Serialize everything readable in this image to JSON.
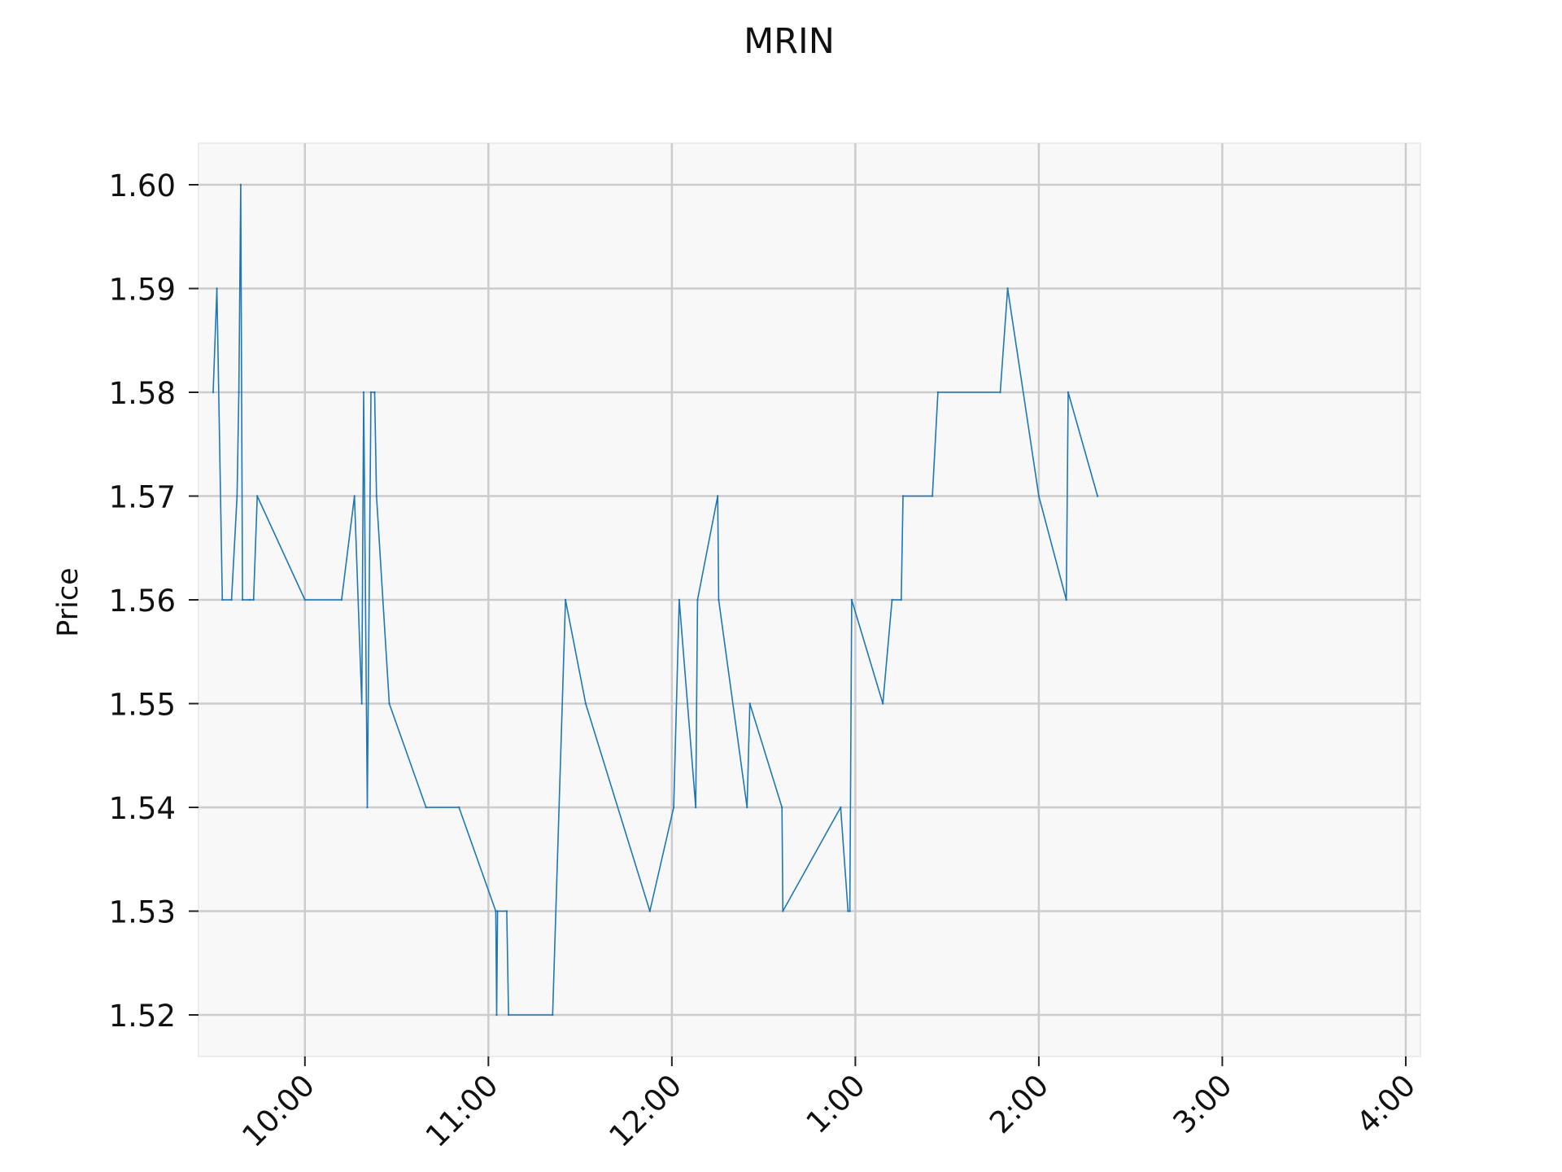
{
  "chart_data": {
    "type": "line",
    "title": "MRIN",
    "xlabel": "",
    "ylabel": "Price",
    "x_tick_labels": [
      "10:00",
      "11:00",
      "12:00",
      "1:00",
      "2:00",
      "3:00",
      "4:00"
    ],
    "x_tick_hours": [
      10,
      11,
      12,
      13,
      14,
      15,
      16
    ],
    "xlim_hours": [
      9.42,
      16.08
    ],
    "y_tick_labels": [
      "1.52",
      "1.53",
      "1.54",
      "1.55",
      "1.56",
      "1.57",
      "1.58",
      "1.59",
      "1.60"
    ],
    "ylim": [
      1.516,
      1.604
    ],
    "grid": true,
    "colors": {
      "line": "#1f77b4",
      "plot_bg": "#f8f8f8",
      "grid": "#cccccc"
    },
    "series": [
      {
        "x_hours": [
          9.5,
          9.52,
          9.55,
          9.6,
          9.63,
          9.64,
          9.65,
          9.66,
          9.7,
          9.72,
          9.74,
          10.0,
          10.2,
          10.27,
          10.31,
          10.32,
          10.34,
          10.36,
          10.38,
          10.39,
          10.46,
          10.66,
          10.84,
          11.04,
          11.045,
          11.05,
          11.1,
          11.11,
          11.35,
          11.42,
          11.53,
          11.88,
          12.01,
          12.04,
          12.13,
          12.14,
          12.25,
          12.255,
          12.41,
          12.425,
          12.6,
          12.605,
          12.92,
          12.96,
          12.97,
          12.98,
          13.15,
          13.2,
          13.25,
          13.26,
          13.42,
          13.45,
          13.79,
          13.83,
          14.0,
          14.15,
          14.16,
          14.32
        ],
        "y": [
          1.58,
          1.59,
          1.56,
          1.56,
          1.57,
          1.58,
          1.6,
          1.56,
          1.56,
          1.56,
          1.57,
          1.56,
          1.56,
          1.57,
          1.55,
          1.58,
          1.54,
          1.58,
          1.58,
          1.57,
          1.55,
          1.54,
          1.54,
          1.53,
          1.52,
          1.53,
          1.53,
          1.52,
          1.52,
          1.56,
          1.55,
          1.53,
          1.54,
          1.56,
          1.54,
          1.56,
          1.57,
          1.56,
          1.54,
          1.55,
          1.54,
          1.53,
          1.54,
          1.53,
          1.53,
          1.56,
          1.55,
          1.56,
          1.56,
          1.57,
          1.57,
          1.58,
          1.58,
          1.59,
          1.57,
          1.56,
          1.58,
          1.57
        ]
      }
    ]
  }
}
